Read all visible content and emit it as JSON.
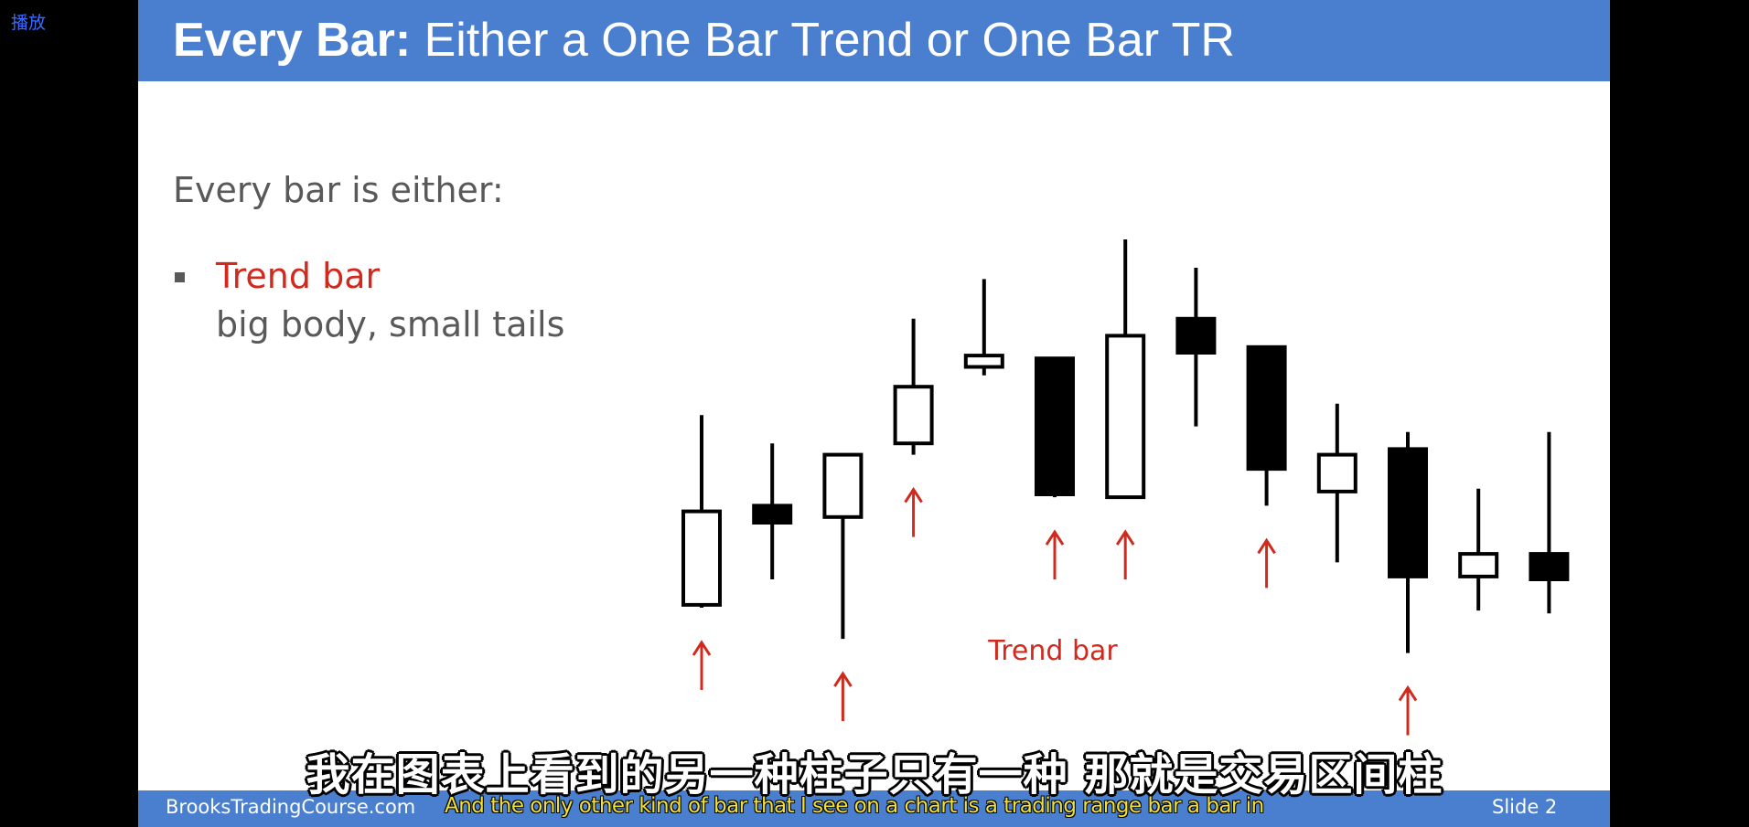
{
  "player": {
    "play_label": "播放"
  },
  "slide": {
    "title_bold": "Every Bar:",
    "title_rest": " Either a One Bar Trend or One Bar TR",
    "intro": "Every bar is either:",
    "bullet_title": "Trend bar",
    "bullet_desc": "big body, small tails",
    "footer_site": "BrooksTradingCourse.com",
    "footer_slide": "Slide  2",
    "colors": {
      "header": "#4a7fd0",
      "accent_red": "#d02a1e",
      "text_gray": "#595959"
    }
  },
  "subtitles": {
    "zh": "我在图表上看到的另一种柱子只有一种 那就是交易区间柱",
    "en": "And the only other kind of bar that I see on a chart is a trading range bar  a bar in"
  },
  "chart_data": {
    "type": "candlestick",
    "annotation": "Trend bar",
    "ylim": [
      0,
      100
    ],
    "bars": [
      {
        "high": 59,
        "low": 25,
        "body_top": 42,
        "body_bottom": 25.5,
        "fill": "white",
        "arrow": true
      },
      {
        "high": 54,
        "low": 30,
        "body_top": 43,
        "body_bottom": 40,
        "fill": "black",
        "arrow": false
      },
      {
        "high": 52,
        "low": 19.5,
        "body_top": 52,
        "body_bottom": 41,
        "fill": "white",
        "arrow": true
      },
      {
        "high": 76,
        "low": 52,
        "body_top": 64,
        "body_bottom": 54,
        "fill": "white",
        "arrow": true
      },
      {
        "high": 83,
        "low": 66,
        "body_top": 69.5,
        "body_bottom": 67.5,
        "fill": "white",
        "arrow": false
      },
      {
        "high": 69,
        "low": 44.5,
        "body_top": 69,
        "body_bottom": 45,
        "fill": "black",
        "arrow": true
      },
      {
        "high": 90,
        "low": 44.5,
        "body_top": 73,
        "body_bottom": 44.5,
        "fill": "white",
        "arrow": true
      },
      {
        "high": 85,
        "low": 57,
        "body_top": 76,
        "body_bottom": 70,
        "fill": "black",
        "arrow": false
      },
      {
        "high": 71,
        "low": 43,
        "body_top": 71,
        "body_bottom": 49.5,
        "fill": "black",
        "arrow": true
      },
      {
        "high": 61,
        "low": 33,
        "body_top": 52,
        "body_bottom": 45.5,
        "fill": "white",
        "arrow": false
      },
      {
        "high": 56,
        "low": 17,
        "body_top": 53,
        "body_bottom": 30.5,
        "fill": "black",
        "arrow": true
      },
      {
        "high": 46,
        "low": 24.5,
        "body_top": 34.5,
        "body_bottom": 30.5,
        "fill": "white",
        "arrow": false
      },
      {
        "high": 56,
        "low": 24,
        "body_top": 34.5,
        "body_bottom": 30,
        "fill": "black",
        "arrow": false
      }
    ]
  }
}
